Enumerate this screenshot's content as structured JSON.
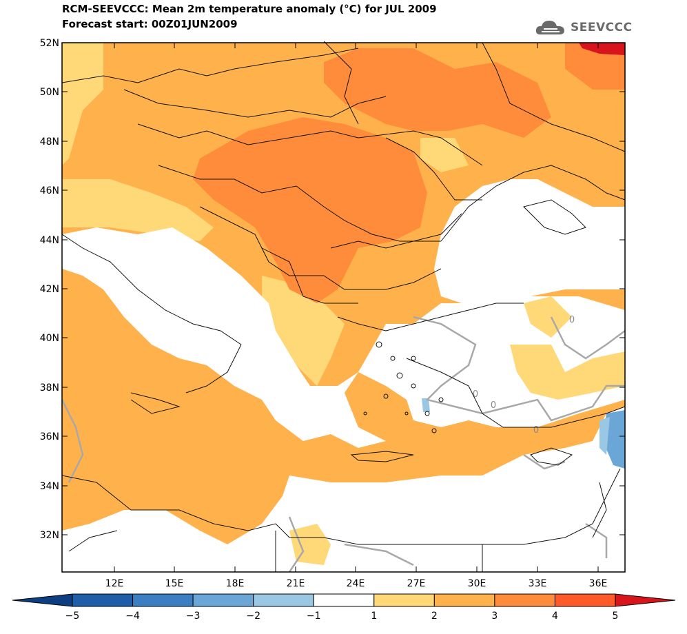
{
  "header": {
    "title": "RCM-SEEVCCC: Mean 2m temperature anomaly (°C) for JUL 2009",
    "subtitle": "Forecast start: 00Z01JUN2009"
  },
  "logo": {
    "text": "SEEVCCC",
    "icon": "cloud-icon"
  },
  "map": {
    "lon_labels": [
      "12E",
      "15E",
      "18E",
      "21E",
      "24E",
      "27E",
      "30E",
      "33E",
      "36E"
    ],
    "lat_labels": [
      "52N",
      "50N",
      "48N",
      "46N",
      "44N",
      "42N",
      "40N",
      "38N",
      "36N",
      "34N",
      "32N"
    ],
    "contour_labels": [
      "0",
      "0",
      "0",
      "0"
    ]
  },
  "colorbar": {
    "ticks": [
      "−5",
      "−4",
      "−3",
      "−2",
      "−1",
      "1",
      "2",
      "3",
      "4",
      "5"
    ],
    "colors": [
      "#1e5ea8",
      "#3a7fc2",
      "#6aa6d6",
      "#9ac8e4",
      "#ffffff",
      "#ffd878",
      "#ffb24c",
      "#ff8c3a",
      "#ff5a28"
    ],
    "under_color": "#0d3e82",
    "over_color": "#d8141c"
  },
  "colors": {
    "anom_1_2": "#ffd878",
    "anom_2_3": "#ffb24c",
    "anom_3_4": "#ff8c3a",
    "anom_4_5": "#ff5a28",
    "anom_gt5": "#d8141c",
    "anom_m1_m2": "#9ac8e4",
    "anom_m2_m3": "#6aa6d6"
  }
}
